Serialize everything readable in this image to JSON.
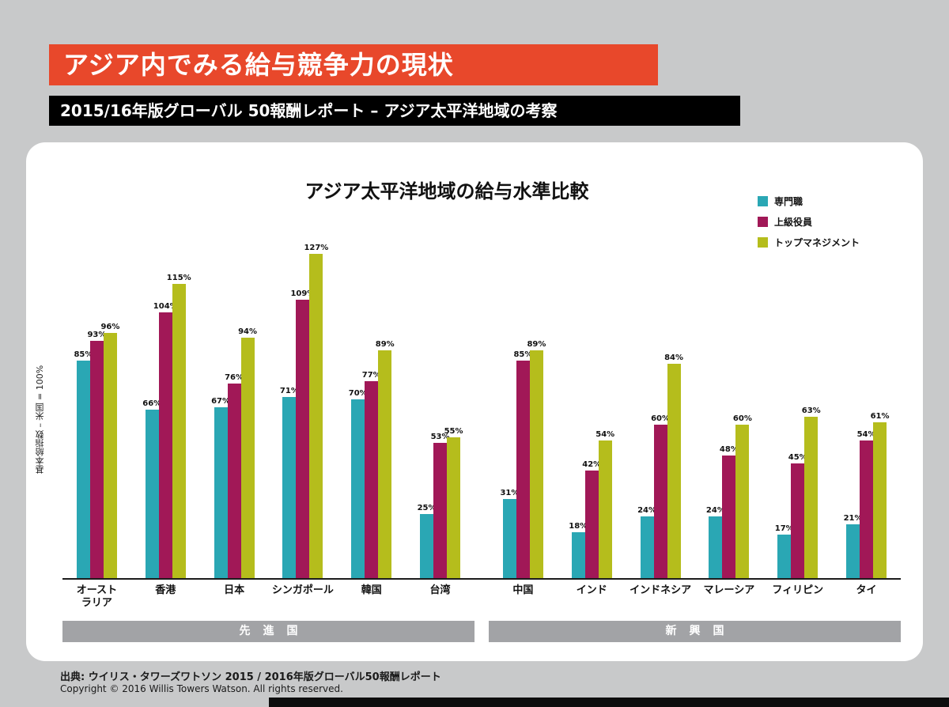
{
  "page": {
    "title_banner": "アジア内でみる給与競争力の現状",
    "subtitle_banner": "2015/16年版グローバル 50報酬レポート – アジア太平洋地域の考察",
    "source_line": "出典: ウイリス・タワーズワトソン 2015 / 2016年版グローバル50報酬レポート",
    "copyright_line": "Copyright © 2016 Willis Towers Watson.  All rights reserved."
  },
  "colors": {
    "accent_red": "#e8482b",
    "banner_black": "#000000",
    "teal": "#2aa7b4",
    "magenta": "#a11857",
    "yellow_green": "#b5bd1c",
    "band_gray": "#a2a3a6",
    "background_gray": "#c8c9ca"
  },
  "chart_data": {
    "type": "bar",
    "title": "アジア太平洋地域の給与水準比較",
    "xlabel": "",
    "ylabel": "基本給指数 – 米国 = 100%",
    "ylim": [
      0,
      130
    ],
    "grid": false,
    "legend_position": "top-right",
    "unit": "%",
    "categories": [
      "オースト\nラリア",
      "香港",
      "日本",
      "シンガポール",
      "韓国",
      "台湾",
      "中国",
      "インド",
      "インドネシア",
      "マレーシア",
      "フィリピン",
      "タイ"
    ],
    "series": [
      {
        "name": "専門職",
        "color": "#2aa7b4",
        "values": [
          85,
          66,
          67,
          71,
          70,
          25,
          31,
          18,
          24,
          24,
          17,
          21
        ]
      },
      {
        "name": "上級役員",
        "color": "#a11857",
        "values": [
          93,
          104,
          76,
          109,
          77,
          53,
          85,
          42,
          60,
          48,
          45,
          54
        ]
      },
      {
        "name": "トップマネジメント",
        "color": "#b5bd1c",
        "values": [
          96,
          115,
          94,
          127,
          89,
          55,
          89,
          54,
          84,
          60,
          63,
          61
        ]
      }
    ],
    "groups": [
      {
        "label": "先進国",
        "category_indexes": [
          0,
          1,
          2,
          3,
          4,
          5
        ]
      },
      {
        "label": "新興国",
        "category_indexes": [
          6,
          7,
          8,
          9,
          10,
          11
        ]
      }
    ]
  }
}
